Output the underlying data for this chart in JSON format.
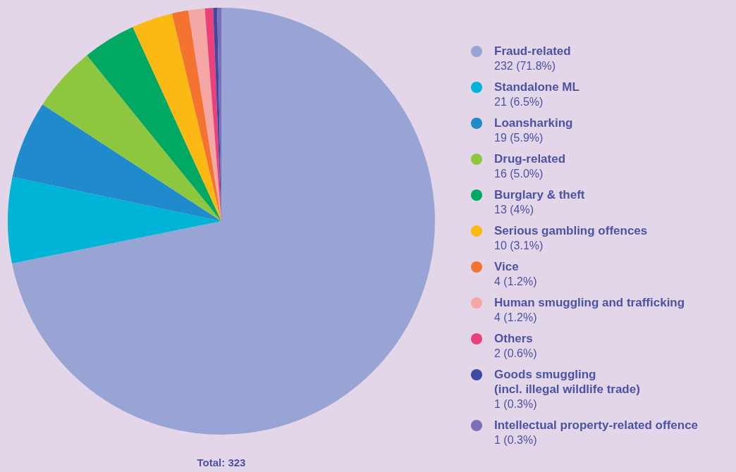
{
  "chart_data": {
    "type": "pie",
    "categories": [
      "Fraud-related",
      "Standalone ML",
      "Loansharking",
      "Drug-related",
      "Burglary & theft",
      "Serious gambling offences",
      "Vice",
      "Human smuggling and trafficking",
      "Others",
      "Goods smuggling\n(incl. illegal wildlife trade)",
      "Intellectual property-related offence"
    ],
    "values": [
      232,
      21,
      19,
      16,
      13,
      10,
      4,
      4,
      2,
      1,
      1
    ],
    "value_labels": [
      "232 (71.8%)",
      "21 (6.5%)",
      "19 (5.9%)",
      "16 (5.0%)",
      "13 (4%)",
      "10 (3.1%)",
      "4 (1.2%)",
      "4 (1.2%)",
      "2 (0.6%)",
      "1 (0.3%)",
      "1 (0.3%)"
    ],
    "colors": [
      "#98a4d4",
      "#00b4d8",
      "#1f8bcc",
      "#8dc63f",
      "#00a862",
      "#fdb913",
      "#f47330",
      "#f5a7a5",
      "#ec407a",
      "#3f4aa0",
      "#7b6fb8"
    ],
    "annotations": [
      "Total: 323"
    ],
    "legend": "right"
  }
}
